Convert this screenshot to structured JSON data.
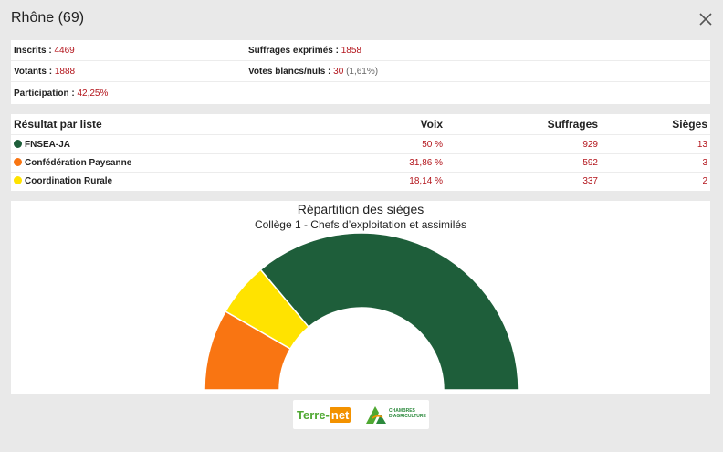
{
  "modal": {
    "title": "Rhône (69)"
  },
  "stats": {
    "inscrits": {
      "label": "Inscrits :",
      "value": "4469"
    },
    "exprimes": {
      "label": "Suffrages exprimés :",
      "value": "1858"
    },
    "votants": {
      "label": "Votants :",
      "value": "1888"
    },
    "blancs": {
      "label": "Votes blancs/nuls :",
      "value": "30",
      "pct": "(1,61%)"
    },
    "participation": {
      "label": "Participation :",
      "value": "42,25%"
    }
  },
  "results": {
    "headers": {
      "liste": "Résultat par liste",
      "voix": "Voix",
      "suffrages": "Suffrages",
      "sieges": "Sièges"
    },
    "rows": [
      {
        "name": "FNSEA-JA",
        "voix": "50 %",
        "suffrages": "929",
        "sieges": "13",
        "color": "#1e5e3a"
      },
      {
        "name": "Confédération Paysanne",
        "voix": "31,86 %",
        "suffrages": "592",
        "sieges": "3",
        "color": "#f97512"
      },
      {
        "name": "Coordination Rurale",
        "voix": "18,14 %",
        "suffrages": "337",
        "sieges": "2",
        "color": "#ffe300"
      }
    ]
  },
  "chart_data": {
    "type": "pie",
    "title": "Répartition des sièges",
    "subtitle": "Collège 1 - Chefs d’exploitation et assimilés",
    "categories": [
      "Coordination Rurale",
      "Confédération Paysanne",
      "FNSEA-JA"
    ],
    "series": [
      {
        "values": [
          2,
          3,
          13
        ]
      }
    ],
    "colors": [
      "#ffe300",
      "#f97512",
      "#1e5e3a"
    ],
    "order_from_left": [
      "Confédération Paysanne",
      "Coordination Rurale",
      "FNSEA-JA"
    ],
    "shape": "semicircle-donut"
  },
  "logos": {
    "terre_a": "Terre-",
    "terre_b": "net",
    "chambres_l1": "CHAMBRES",
    "chambres_l2": "D'AGRICULTURE"
  }
}
